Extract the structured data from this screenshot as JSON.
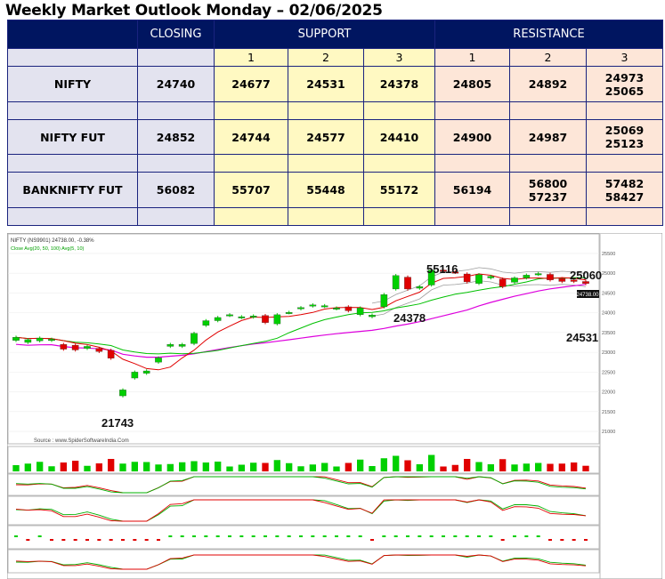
{
  "title": "Weekly Market Outlook Monday – 02/06/2025",
  "table": {
    "headers": {
      "closing": "CLOSING",
      "support": "SUPPORT",
      "resistance": "RESISTANCE"
    },
    "sub": [
      "1",
      "2",
      "3",
      "1",
      "2",
      "3"
    ],
    "rows": [
      {
        "name": "NIFTY",
        "closing": "24740",
        "s1": "24677",
        "s2": "24531",
        "s3": "24378",
        "r1": "24805",
        "r2": "24892",
        "r3": "24973\n25065"
      },
      {
        "name": "NIFTY FUT",
        "closing": "24852",
        "s1": "24744",
        "s2": "24577",
        "s3": "24410",
        "r1": "24900",
        "r2": "24987",
        "r3": "25069\n25123"
      },
      {
        "name": "BANKNIFTY FUT",
        "closing": "56082",
        "s1": "55707",
        "s2": "55448",
        "s3": "55172",
        "r1": "56194",
        "r2": "56800\n57237",
        "r3": "57482\n58427"
      }
    ]
  },
  "chart_data": {
    "type": "candlestick",
    "symbol_header": "NIFTY (NS9901) 24738.00, -0.38%",
    "ma_legend": "Close Avg(20, 50, 100) Avg(5, 10)",
    "source": "Source : www.SpiderSoftwareIndia.Com",
    "annotations": [
      "21743",
      "55116",
      "25060",
      "24378",
      "24531"
    ],
    "price_scale": [
      "25500",
      "25000",
      "24500",
      "24000",
      "23500",
      "23000",
      "22500",
      "22000",
      "21500",
      "21000"
    ],
    "last_price": "24738.00",
    "ylim": [
      20800,
      25700
    ],
    "candles": [
      {
        "o": 23300,
        "c": 23380
      },
      {
        "o": 23250,
        "c": 23320
      },
      {
        "o": 23290,
        "c": 23360
      },
      {
        "o": 23300,
        "c": 23330
      },
      {
        "o": 23200,
        "c": 23080
      },
      {
        "o": 23180,
        "c": 23060
      },
      {
        "o": 23100,
        "c": 23150
      },
      {
        "o": 23100,
        "c": 23020
      },
      {
        "o": 23050,
        "c": 22850
      },
      {
        "o": 21900,
        "c": 22050
      },
      {
        "o": 22350,
        "c": 22500
      },
      {
        "o": 22470,
        "c": 22530
      },
      {
        "o": 22750,
        "c": 22860
      },
      {
        "o": 23150,
        "c": 23200
      },
      {
        "o": 23150,
        "c": 23200
      },
      {
        "o": 23220,
        "c": 23480
      },
      {
        "o": 23680,
        "c": 23800
      },
      {
        "o": 23800,
        "c": 23880
      },
      {
        "o": 23930,
        "c": 23950
      },
      {
        "o": 23880,
        "c": 23900
      },
      {
        "o": 23890,
        "c": 23920
      },
      {
        "o": 23930,
        "c": 23750
      },
      {
        "o": 23720,
        "c": 23950
      },
      {
        "o": 24000,
        "c": 24010
      },
      {
        "o": 24100,
        "c": 24130
      },
      {
        "o": 24170,
        "c": 24200
      },
      {
        "o": 24160,
        "c": 24180
      },
      {
        "o": 24100,
        "c": 24120
      },
      {
        "o": 24150,
        "c": 24050
      },
      {
        "o": 23950,
        "c": 24120
      },
      {
        "o": 23900,
        "c": 23940
      },
      {
        "o": 24150,
        "c": 24460
      },
      {
        "o": 24600,
        "c": 24940
      },
      {
        "o": 24900,
        "c": 24600
      },
      {
        "o": 24620,
        "c": 24660
      },
      {
        "o": 24700,
        "c": 25080
      },
      {
        "o": 25080,
        "c": 25060
      },
      {
        "o": 25030,
        "c": 25020
      },
      {
        "o": 24980,
        "c": 24780
      },
      {
        "o": 24740,
        "c": 24960
      },
      {
        "o": 24880,
        "c": 24920
      },
      {
        "o": 24850,
        "c": 24660
      },
      {
        "o": 24770,
        "c": 24880
      },
      {
        "o": 24880,
        "c": 24950
      },
      {
        "o": 24970,
        "c": 24990
      },
      {
        "o": 24970,
        "c": 24830
      },
      {
        "o": 24860,
        "c": 24790
      },
      {
        "o": 24830,
        "c": 24790
      },
      {
        "o": 24790,
        "c": 24738
      }
    ],
    "colors": {
      "up": "#00d000",
      "down": "#e00000",
      "ma_fast": "#e00000",
      "ma_mid": "#00c000",
      "ma_slow": "#dd00dd",
      "band": "#9e9e9e"
    }
  }
}
